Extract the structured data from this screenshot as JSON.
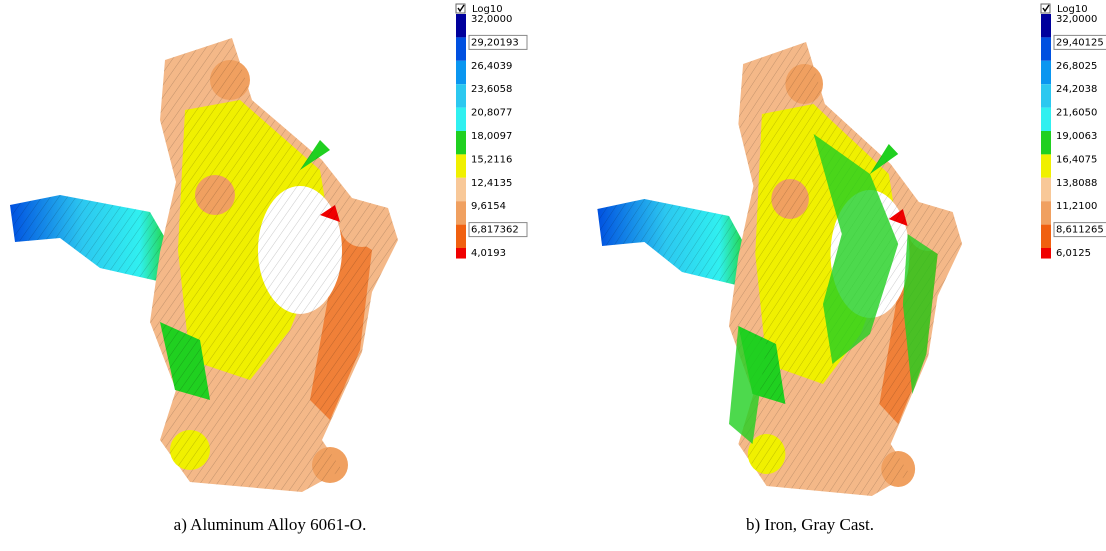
{
  "panels": [
    {
      "legend": {
        "title": "Log10",
        "levels": [
          {
            "label": "32,0000"
          },
          {
            "label": "29,20193",
            "boxed": true
          },
          {
            "label": "26,4039"
          },
          {
            "label": "23,6058"
          },
          {
            "label": "20,8077"
          },
          {
            "label": "18,0097"
          },
          {
            "label": "15,2116"
          },
          {
            "label": "12,4135"
          },
          {
            "label": "9,6154"
          },
          {
            "label": "6,817362",
            "boxed": true
          },
          {
            "label": "4,0193"
          }
        ],
        "colors": [
          "#00009c",
          "#0050e0",
          "#0a96f0",
          "#2cc8f0",
          "#30f0f0",
          "#20d020",
          "#f0f000",
          "#f8c898",
          "#f0a060",
          "#f06010",
          "#f00000"
        ]
      },
      "caption": "a) Aluminum Alloy 6061-O."
    },
    {
      "legend": {
        "title": "Log10",
        "levels": [
          {
            "label": "32,0000"
          },
          {
            "label": "29,40125",
            "boxed": true
          },
          {
            "label": "26,8025"
          },
          {
            "label": "24,2038"
          },
          {
            "label": "21,6050"
          },
          {
            "label": "19,0063"
          },
          {
            "label": "16,4075"
          },
          {
            "label": "13,8088"
          },
          {
            "label": "11,2100"
          },
          {
            "label": "8,611265",
            "boxed": true
          },
          {
            "label": "6,0125"
          }
        ],
        "colors": [
          "#00009c",
          "#0050e0",
          "#0a96f0",
          "#2cc8f0",
          "#30f0f0",
          "#20d020",
          "#f0f000",
          "#f8c898",
          "#f0a060",
          "#f06010",
          "#f00000"
        ]
      },
      "caption": "b) Iron, Gray Cast."
    }
  ]
}
